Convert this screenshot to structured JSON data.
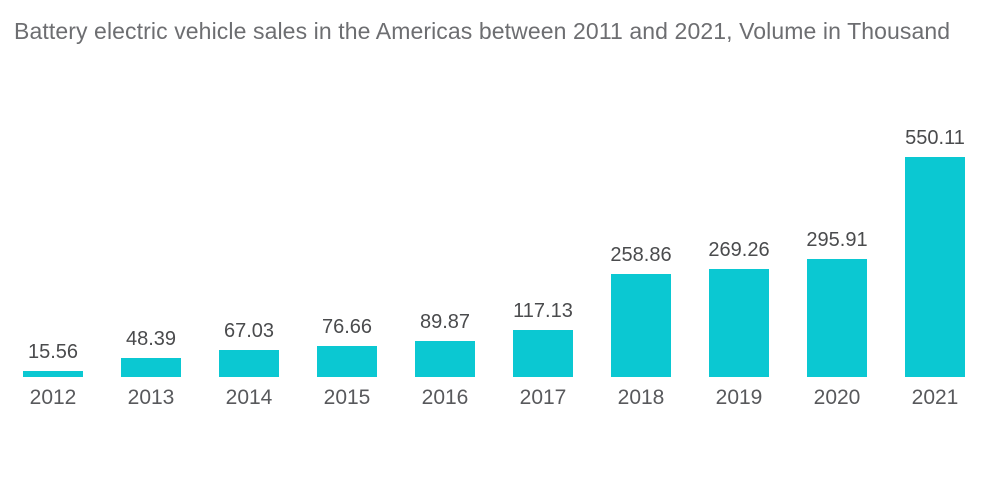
{
  "page": {
    "background": "#ffffff"
  },
  "header": {
    "title": "Battery electric vehicle sales in the Americas between 2011 and 2021, Volume in Thousand"
  },
  "colors": {
    "bar": "#0bc8d2",
    "title_text": "#6d6e71",
    "value_text": "#4a4b4d",
    "category_text": "#58595c"
  },
  "chart_data": {
    "type": "bar",
    "title": "Battery electric vehicle sales in the Americas between 2011 and 2021, Volume in Thousand",
    "categories": [
      "2012",
      "2013",
      "2014",
      "2015",
      "2016",
      "2017",
      "2018",
      "2019",
      "2020",
      "2021"
    ],
    "values": [
      15.56,
      48.39,
      67.03,
      76.66,
      89.87,
      117.13,
      258.86,
      269.26,
      295.91,
      550.11
    ],
    "value_labels": [
      "15.56",
      "48.39",
      "67.03",
      "76.66",
      "89.87",
      "117.13",
      "258.86",
      "269.26",
      "295.91",
      "550.11"
    ],
    "xlabel": "",
    "ylabel": "Volume in Thousand",
    "ylim": [
      0,
      560
    ],
    "grid": false,
    "legend": "none",
    "data_labels": true,
    "bar_color": "#0bc8d2"
  }
}
